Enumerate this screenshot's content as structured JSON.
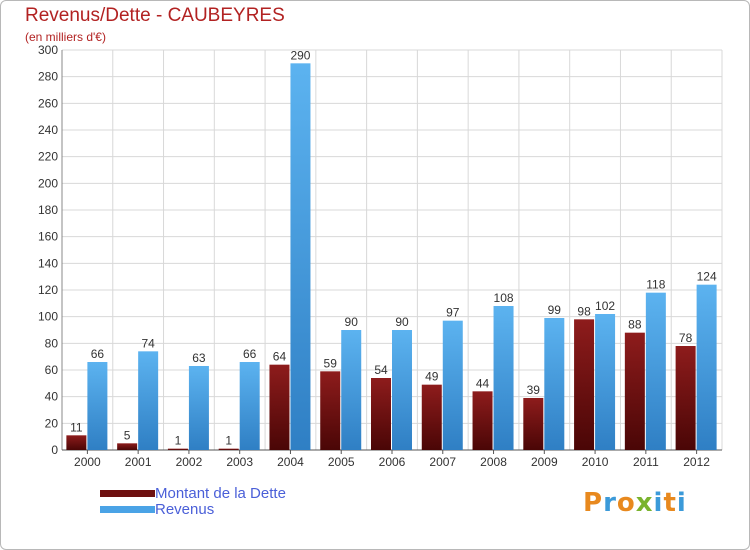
{
  "title": "Revenus/Dette - CAUBEYRES",
  "subtitle": "(en milliers d'€)",
  "legend": [
    {
      "label": "Montant de la Dette",
      "color": "#7a1414"
    },
    {
      "label": "Revenus",
      "color": "#4aa3e6"
    }
  ],
  "logo": {
    "text": "Proxiti",
    "colors": [
      "#e8891e",
      "#3b9ad9",
      "#e8891e",
      "#7ab32e",
      "#3b9ad9",
      "#e8891e",
      "#3b9ad9"
    ]
  },
  "chart_data": {
    "type": "bar",
    "title": "Revenus/Dette - CAUBEYRES",
    "ylabel": "(en milliers d'€)",
    "xlabel": "",
    "ylim": [
      0,
      300
    ],
    "yticks": [
      0,
      20,
      40,
      60,
      80,
      100,
      120,
      140,
      160,
      180,
      200,
      220,
      240,
      260,
      280,
      300
    ],
    "categories": [
      "2000",
      "2001",
      "2002",
      "2003",
      "2004",
      "2005",
      "2006",
      "2007",
      "2008",
      "2009",
      "2010",
      "2011",
      "2012"
    ],
    "series": [
      {
        "name": "Montant de la Dette",
        "color": "#7a1414",
        "values": [
          11,
          5,
          1,
          1,
          64,
          59,
          54,
          49,
          44,
          39,
          98,
          88,
          78
        ]
      },
      {
        "name": "Revenus",
        "color": "#4aa3e6",
        "values": [
          66,
          74,
          63,
          66,
          290,
          90,
          90,
          97,
          108,
          99,
          102,
          118,
          124
        ]
      }
    ],
    "grid": true,
    "legend_position": "bottom-left"
  }
}
